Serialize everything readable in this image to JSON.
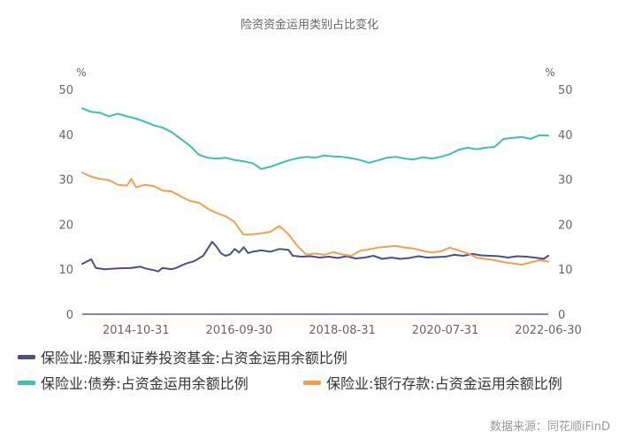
{
  "chart_data": {
    "type": "line",
    "title": "险资资金运用类别占比变化",
    "unit_left": "%",
    "unit_right": "%",
    "ylim": [
      0,
      50
    ],
    "yticks": [
      0,
      10,
      20,
      30,
      40,
      50
    ],
    "xlim": [
      "2013-10-31",
      "2022-06-30"
    ],
    "x_tick_labels": [
      "2014-10-31",
      "2016-09-30",
      "2018-08-31",
      "2020-07-31",
      "2022-06-30"
    ],
    "grid": false,
    "legend_position": "bottom",
    "source": "数据来源：同花顺iFinD",
    "series": [
      {
        "name": "保险业:股票和证券投资基金:占资金运用余额比例",
        "color": "#4a4f8c",
        "points": [
          [
            "2013-10-31",
            11.2
          ],
          [
            "2013-12-31",
            12.2
          ],
          [
            "2014-01-31",
            10.3
          ],
          [
            "2014-03-31",
            10.0
          ],
          [
            "2014-06-30",
            10.2
          ],
          [
            "2014-09-30",
            10.3
          ],
          [
            "2014-11-30",
            10.6
          ],
          [
            "2014-12-31",
            10.2
          ],
          [
            "2015-02-28",
            9.8
          ],
          [
            "2015-03-31",
            9.5
          ],
          [
            "2015-04-30",
            10.3
          ],
          [
            "2015-06-30",
            10.0
          ],
          [
            "2015-07-31",
            10.3
          ],
          [
            "2015-09-30",
            11.2
          ],
          [
            "2015-11-30",
            11.8
          ],
          [
            "2016-01-31",
            13.0
          ],
          [
            "2016-02-29",
            14.5
          ],
          [
            "2016-03-31",
            16.1
          ],
          [
            "2016-04-30",
            15.0
          ],
          [
            "2016-05-31",
            13.5
          ],
          [
            "2016-06-30",
            13.0
          ],
          [
            "2016-07-31",
            13.3
          ],
          [
            "2016-08-31",
            14.5
          ],
          [
            "2016-09-30",
            13.7
          ],
          [
            "2016-10-31",
            14.9
          ],
          [
            "2016-11-30",
            13.6
          ],
          [
            "2016-12-31",
            13.9
          ],
          [
            "2017-02-28",
            14.2
          ],
          [
            "2017-04-30",
            13.9
          ],
          [
            "2017-06-30",
            14.5
          ],
          [
            "2017-08-31",
            14.3
          ],
          [
            "2017-09-30",
            13.0
          ],
          [
            "2017-11-30",
            12.8
          ],
          [
            "2018-01-31",
            12.9
          ],
          [
            "2018-03-31",
            12.6
          ],
          [
            "2018-05-31",
            12.8
          ],
          [
            "2018-07-31",
            12.5
          ],
          [
            "2018-09-30",
            12.9
          ],
          [
            "2018-11-30",
            12.4
          ],
          [
            "2019-01-31",
            12.6
          ],
          [
            "2019-03-31",
            13.0
          ],
          [
            "2019-05-31",
            12.3
          ],
          [
            "2019-07-31",
            12.6
          ],
          [
            "2019-09-30",
            12.3
          ],
          [
            "2019-11-30",
            12.5
          ],
          [
            "2020-01-31",
            12.9
          ],
          [
            "2020-03-31",
            12.6
          ],
          [
            "2020-05-31",
            12.7
          ],
          [
            "2020-07-31",
            12.8
          ],
          [
            "2020-09-30",
            13.2
          ],
          [
            "2020-11-30",
            13.0
          ],
          [
            "2021-01-31",
            13.4
          ],
          [
            "2021-03-31",
            13.1
          ],
          [
            "2021-05-31",
            13.0
          ],
          [
            "2021-07-31",
            12.9
          ],
          [
            "2021-09-30",
            12.6
          ],
          [
            "2021-11-30",
            12.9
          ],
          [
            "2022-01-31",
            12.8
          ],
          [
            "2022-03-31",
            12.6
          ],
          [
            "2022-05-31",
            12.3
          ],
          [
            "2022-06-30",
            13.0
          ]
        ]
      },
      {
        "name": "保险业:债券:占资金运用余额比例",
        "color": "#3dbfb2",
        "points": [
          [
            "2013-10-31",
            45.8
          ],
          [
            "2013-12-31",
            45.0
          ],
          [
            "2014-02-28",
            44.8
          ],
          [
            "2014-04-30",
            44.0
          ],
          [
            "2014-06-30",
            44.6
          ],
          [
            "2014-08-31",
            44.0
          ],
          [
            "2014-10-31",
            43.5
          ],
          [
            "2014-12-31",
            42.8
          ],
          [
            "2015-02-28",
            42.0
          ],
          [
            "2015-04-30",
            41.5
          ],
          [
            "2015-06-30",
            40.5
          ],
          [
            "2015-08-31",
            39.0
          ],
          [
            "2015-10-31",
            37.5
          ],
          [
            "2015-12-31",
            35.5
          ],
          [
            "2016-02-29",
            34.8
          ],
          [
            "2016-04-30",
            34.6
          ],
          [
            "2016-06-30",
            34.8
          ],
          [
            "2016-08-31",
            34.3
          ],
          [
            "2016-10-31",
            34.0
          ],
          [
            "2016-12-31",
            33.6
          ],
          [
            "2017-02-28",
            32.3
          ],
          [
            "2017-04-30",
            32.8
          ],
          [
            "2017-06-30",
            33.5
          ],
          [
            "2017-08-31",
            34.2
          ],
          [
            "2017-10-31",
            34.7
          ],
          [
            "2017-12-31",
            35.0
          ],
          [
            "2018-02-28",
            34.8
          ],
          [
            "2018-04-30",
            35.3
          ],
          [
            "2018-06-30",
            35.1
          ],
          [
            "2018-08-31",
            35.0
          ],
          [
            "2018-10-31",
            34.7
          ],
          [
            "2018-12-31",
            34.3
          ],
          [
            "2019-02-28",
            33.7
          ],
          [
            "2019-04-30",
            34.2
          ],
          [
            "2019-06-30",
            34.8
          ],
          [
            "2019-08-31",
            35.0
          ],
          [
            "2019-10-31",
            34.6
          ],
          [
            "2019-12-31",
            34.4
          ],
          [
            "2020-02-29",
            34.9
          ],
          [
            "2020-04-30",
            34.6
          ],
          [
            "2020-06-30",
            35.0
          ],
          [
            "2020-08-31",
            35.6
          ],
          [
            "2020-10-31",
            36.6
          ],
          [
            "2020-12-31",
            37.0
          ],
          [
            "2021-02-28",
            36.7
          ],
          [
            "2021-04-30",
            37.0
          ],
          [
            "2021-06-30",
            37.2
          ],
          [
            "2021-08-31",
            39.0
          ],
          [
            "2021-10-31",
            39.2
          ],
          [
            "2021-12-31",
            39.4
          ],
          [
            "2022-02-28",
            39.0
          ],
          [
            "2022-04-30",
            39.8
          ],
          [
            "2022-06-30",
            39.7
          ]
        ]
      },
      {
        "name": "保险业:银行存款:占资金运用余额比例",
        "color": "#f0a150",
        "points": [
          [
            "2013-10-31",
            31.5
          ],
          [
            "2013-12-31",
            30.6
          ],
          [
            "2014-02-28",
            30.1
          ],
          [
            "2014-04-30",
            29.8
          ],
          [
            "2014-06-30",
            28.8
          ],
          [
            "2014-08-31",
            28.6
          ],
          [
            "2014-09-30",
            30.1
          ],
          [
            "2014-10-31",
            28.2
          ],
          [
            "2014-12-31",
            28.8
          ],
          [
            "2015-02-28",
            28.5
          ],
          [
            "2015-04-30",
            27.5
          ],
          [
            "2015-06-30",
            27.3
          ],
          [
            "2015-08-31",
            26.2
          ],
          [
            "2015-10-31",
            25.2
          ],
          [
            "2015-12-31",
            24.8
          ],
          [
            "2016-02-29",
            23.5
          ],
          [
            "2016-04-30",
            22.5
          ],
          [
            "2016-06-30",
            21.8
          ],
          [
            "2016-08-31",
            20.5
          ],
          [
            "2016-09-30",
            19.0
          ],
          [
            "2016-10-31",
            17.7
          ],
          [
            "2016-12-31",
            17.8
          ],
          [
            "2017-02-28",
            18.0
          ],
          [
            "2017-04-30",
            18.3
          ],
          [
            "2017-06-30",
            19.6
          ],
          [
            "2017-08-31",
            17.8
          ],
          [
            "2017-10-31",
            15.2
          ],
          [
            "2017-12-31",
            13.2
          ],
          [
            "2018-02-28",
            13.5
          ],
          [
            "2018-04-30",
            13.2
          ],
          [
            "2018-06-30",
            13.8
          ],
          [
            "2018-08-31",
            13.3
          ],
          [
            "2018-10-31",
            13.0
          ],
          [
            "2018-12-31",
            14.1
          ],
          [
            "2019-02-28",
            14.4
          ],
          [
            "2019-04-30",
            14.8
          ],
          [
            "2019-06-30",
            15.0
          ],
          [
            "2019-08-31",
            15.2
          ],
          [
            "2019-10-31",
            14.8
          ],
          [
            "2019-12-31",
            14.6
          ],
          [
            "2020-02-29",
            14.1
          ],
          [
            "2020-04-30",
            13.7
          ],
          [
            "2020-06-30",
            14.0
          ],
          [
            "2020-08-31",
            14.8
          ],
          [
            "2020-10-31",
            14.2
          ],
          [
            "2020-12-31",
            13.5
          ],
          [
            "2021-02-28",
            12.6
          ],
          [
            "2021-04-30",
            12.3
          ],
          [
            "2021-06-30",
            12.0
          ],
          [
            "2021-08-31",
            11.6
          ],
          [
            "2021-10-31",
            11.3
          ],
          [
            "2021-12-31",
            11.0
          ],
          [
            "2022-02-28",
            11.5
          ],
          [
            "2022-04-30",
            12.0
          ],
          [
            "2022-06-30",
            11.7
          ]
        ]
      }
    ]
  }
}
